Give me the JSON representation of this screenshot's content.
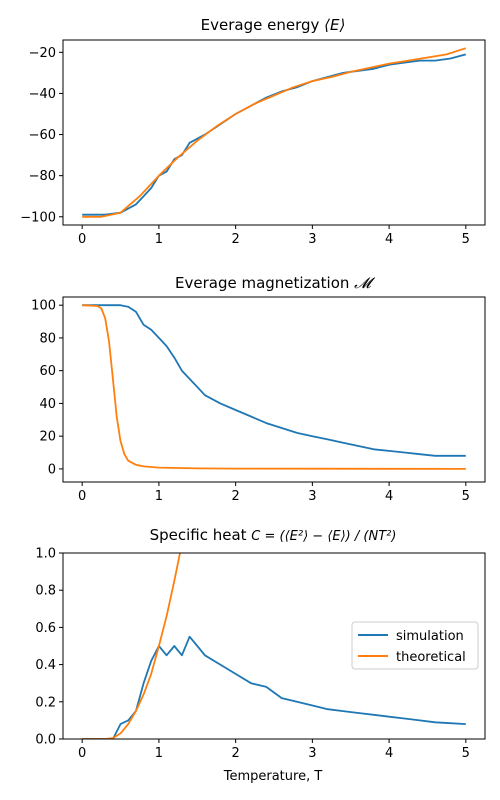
{
  "colors": {
    "simulation": "#1f77b4",
    "theoretical": "#ff7f0e"
  },
  "legend": {
    "simulation": "simulation",
    "theoretical": "theoretical"
  },
  "chart_data": [
    {
      "type": "line",
      "title_prefix": "Everage energy ",
      "title_math": "⟨E⟩",
      "xlim": [
        -0.25,
        5.25
      ],
      "ylim": [
        -104,
        -14
      ],
      "xticks": [
        0,
        1,
        2,
        3,
        4,
        5
      ],
      "yticks": [
        -100,
        -80,
        -60,
        -40,
        -20
      ],
      "xlabel": "",
      "series": [
        {
          "name": "simulation",
          "x": [
            0,
            0.3,
            0.5,
            0.6,
            0.7,
            0.8,
            0.9,
            1.0,
            1.1,
            1.2,
            1.3,
            1.4,
            1.5,
            1.6,
            1.8,
            2.0,
            2.2,
            2.4,
            2.6,
            2.8,
            3.0,
            3.2,
            3.4,
            3.6,
            3.8,
            4.0,
            4.2,
            4.4,
            4.6,
            4.8,
            5.0
          ],
          "y": [
            -99,
            -99,
            -98,
            -96,
            -94,
            -90,
            -86,
            -80,
            -78,
            -72,
            -70,
            -64,
            -62,
            -60,
            -55,
            -50,
            -46,
            -42,
            -39,
            -37,
            -34,
            -32,
            -30,
            -29,
            -28,
            -26,
            -25,
            -24,
            -24,
            -23,
            -21
          ]
        },
        {
          "name": "theoretical",
          "x": [
            0,
            0.25,
            0.5,
            0.75,
            1.0,
            1.25,
            1.5,
            1.75,
            2.0,
            2.25,
            2.5,
            2.75,
            3.0,
            3.25,
            3.5,
            3.75,
            4.0,
            4.25,
            4.5,
            4.75,
            5.0
          ],
          "y": [
            -100,
            -100,
            -98,
            -90,
            -80,
            -71,
            -63,
            -56,
            -50,
            -45,
            -41,
            -37,
            -34,
            -32,
            -29.5,
            -27.5,
            -25.5,
            -24,
            -22.5,
            -21,
            -18
          ]
        }
      ]
    },
    {
      "type": "line",
      "title_prefix": "Everage magnetization ",
      "title_math": "𝓜",
      "xlim": [
        -0.25,
        5.25
      ],
      "ylim": [
        -8,
        105
      ],
      "xticks": [
        0,
        1,
        2,
        3,
        4,
        5
      ],
      "yticks": [
        0,
        20,
        40,
        60,
        80,
        100
      ],
      "xlabel": "",
      "series": [
        {
          "name": "simulation",
          "x": [
            0,
            0.5,
            0.6,
            0.7,
            0.8,
            0.9,
            1.0,
            1.1,
            1.2,
            1.3,
            1.4,
            1.5,
            1.6,
            1.8,
            2.0,
            2.2,
            2.4,
            2.6,
            2.8,
            3.0,
            3.2,
            3.4,
            3.6,
            3.8,
            4.0,
            4.2,
            4.4,
            4.6,
            4.8,
            5.0
          ],
          "y": [
            100,
            100,
            99,
            96,
            88,
            85,
            80,
            75,
            68,
            60,
            55,
            50,
            45,
            40,
            36,
            32,
            28,
            25,
            22,
            20,
            18,
            16,
            14,
            12,
            11,
            10,
            9,
            8,
            8,
            8
          ]
        },
        {
          "name": "theoretical",
          "x": [
            0,
            0.2,
            0.25,
            0.3,
            0.35,
            0.4,
            0.45,
            0.5,
            0.55,
            0.6,
            0.7,
            0.8,
            1.0,
            1.5,
            2.0,
            3.0,
            4.0,
            5.0
          ],
          "y": [
            100,
            99.5,
            98,
            92,
            78,
            55,
            32,
            17,
            9,
            5,
            2.5,
            1.5,
            0.8,
            0.3,
            0.2,
            0.1,
            0.05,
            0
          ]
        }
      ]
    },
    {
      "type": "line",
      "title_prefix": "Specific heat ",
      "title_math": "C = (⟨E²⟩ − ⟨E⟩) / (NT²)",
      "xlim": [
        -0.25,
        5.25
      ],
      "ylim": [
        0,
        1
      ],
      "xticks": [
        0,
        1,
        2,
        3,
        4,
        5
      ],
      "yticks": [
        0.0,
        0.2,
        0.4,
        0.6,
        0.8,
        1.0
      ],
      "xlabel": "Temperature, T",
      "series": [
        {
          "name": "simulation",
          "x": [
            0,
            0.4,
            0.5,
            0.6,
            0.7,
            0.8,
            0.9,
            1.0,
            1.1,
            1.2,
            1.3,
            1.4,
            1.5,
            1.6,
            1.8,
            2.0,
            2.2,
            2.4,
            2.6,
            2.8,
            3.0,
            3.2,
            3.4,
            3.6,
            3.8,
            4.0,
            4.2,
            4.4,
            4.6,
            4.8,
            5.0
          ],
          "y": [
            0,
            0,
            0.08,
            0.1,
            0.15,
            0.3,
            0.42,
            0.5,
            0.45,
            0.5,
            0.45,
            0.55,
            0.5,
            0.45,
            0.4,
            0.35,
            0.3,
            0.28,
            0.22,
            0.2,
            0.18,
            0.16,
            0.15,
            0.14,
            0.13,
            0.12,
            0.11,
            0.1,
            0.09,
            0.085,
            0.08
          ]
        },
        {
          "name": "theoretical",
          "x": [
            0,
            0.3,
            0.4,
            0.5,
            0.6,
            0.7,
            0.8,
            0.9,
            1.0,
            1.1,
            1.2,
            1.25,
            1.3
          ],
          "y": [
            0,
            0,
            0.005,
            0.03,
            0.08,
            0.15,
            0.24,
            0.35,
            0.5,
            0.66,
            0.85,
            0.95,
            1.05
          ]
        }
      ]
    }
  ]
}
